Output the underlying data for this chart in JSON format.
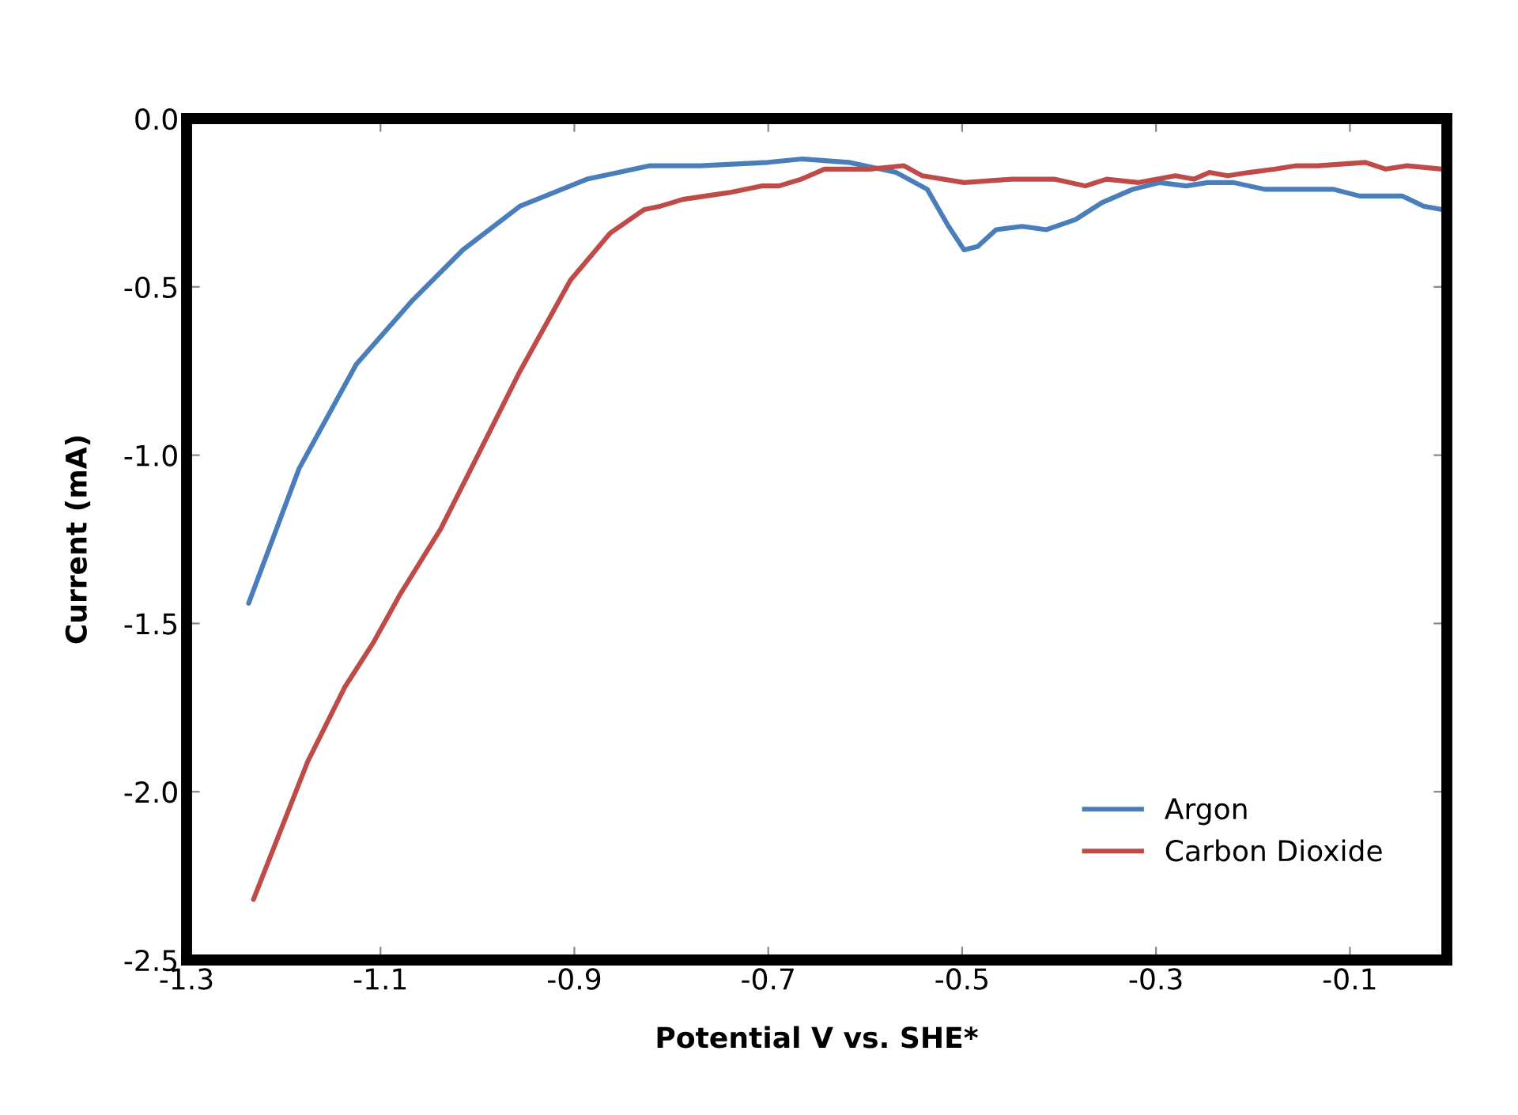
{
  "chart_data": {
    "type": "line",
    "xlabel": "Potential V vs. SHE*",
    "ylabel": "Current (mA)",
    "xlim": [
      -1.3,
      0.0
    ],
    "xticks": [
      -1.3,
      -1.1,
      -0.9,
      -0.7,
      -0.5,
      -0.3,
      -0.1
    ],
    "ylim": [
      -2.5,
      0.0
    ],
    "yticks": [
      {
        "value": 0,
        "label": "0.0"
      },
      {
        "value": -0.5,
        "label": "-0.5"
      },
      {
        "value": -1,
        "label": "-1.0"
      },
      {
        "value": -1.5,
        "label": "-1.5"
      },
      {
        "value": -2,
        "label": "-2.0"
      },
      {
        "value": -2.5,
        "label": "-2.5"
      }
    ],
    "grid": false,
    "legend": "bottom right",
    "marker": "none",
    "line_style": "solid",
    "series": [
      {
        "name": "Argon",
        "color": "#4a7ebb",
        "x": [
          -1.236,
          -1.184,
          -1.125,
          -1.067,
          -1.015,
          -0.956,
          -0.887,
          -0.822,
          -0.77,
          -0.7,
          -0.665,
          -0.617,
          -0.568,
          -0.536,
          -0.514,
          -0.498,
          -0.484,
          -0.465,
          -0.438,
          -0.413,
          -0.383,
          -0.356,
          -0.324,
          -0.296,
          -0.269,
          -0.247,
          -0.22,
          -0.188,
          -0.166,
          -0.144,
          -0.117,
          -0.09,
          -0.046,
          -0.024,
          -0.005
        ],
        "values": [
          -1.44,
          -1.04,
          -0.73,
          -0.54,
          -0.39,
          -0.26,
          -0.18,
          -0.14,
          -0.14,
          -0.13,
          -0.12,
          -0.13,
          -0.16,
          -0.21,
          -0.32,
          -0.39,
          -0.38,
          -0.33,
          -0.32,
          -0.33,
          -0.3,
          -0.25,
          -0.21,
          -0.19,
          -0.2,
          -0.19,
          -0.19,
          -0.21,
          -0.21,
          -0.21,
          -0.21,
          -0.23,
          -0.23,
          -0.26,
          -0.27
        ]
      },
      {
        "name": "Carbon Dioxide",
        "color": "#be4b48",
        "x": [
          -1.231,
          -1.175,
          -1.137,
          -1.108,
          -1.079,
          -1.038,
          -1.003,
          -0.956,
          -0.904,
          -0.863,
          -0.828,
          -0.811,
          -0.788,
          -0.741,
          -0.706,
          -0.689,
          -0.666,
          -0.642,
          -0.595,
          -0.56,
          -0.541,
          -0.498,
          -0.449,
          -0.405,
          -0.373,
          -0.351,
          -0.318,
          -0.28,
          -0.261,
          -0.245,
          -0.226,
          -0.204,
          -0.177,
          -0.155,
          -0.133,
          -0.084,
          -0.063,
          -0.041,
          -0.005
        ],
        "values": [
          -2.32,
          -1.91,
          -1.69,
          -1.56,
          -1.41,
          -1.22,
          -1.02,
          -0.75,
          -0.48,
          -0.34,
          -0.27,
          -0.26,
          -0.24,
          -0.22,
          -0.2,
          -0.2,
          -0.18,
          -0.15,
          -0.15,
          -0.14,
          -0.17,
          -0.19,
          -0.18,
          -0.18,
          -0.2,
          -0.18,
          -0.19,
          -0.17,
          -0.18,
          -0.16,
          -0.17,
          -0.16,
          -0.15,
          -0.14,
          -0.14,
          -0.13,
          -0.15,
          -0.14,
          -0.15
        ]
      }
    ]
  }
}
